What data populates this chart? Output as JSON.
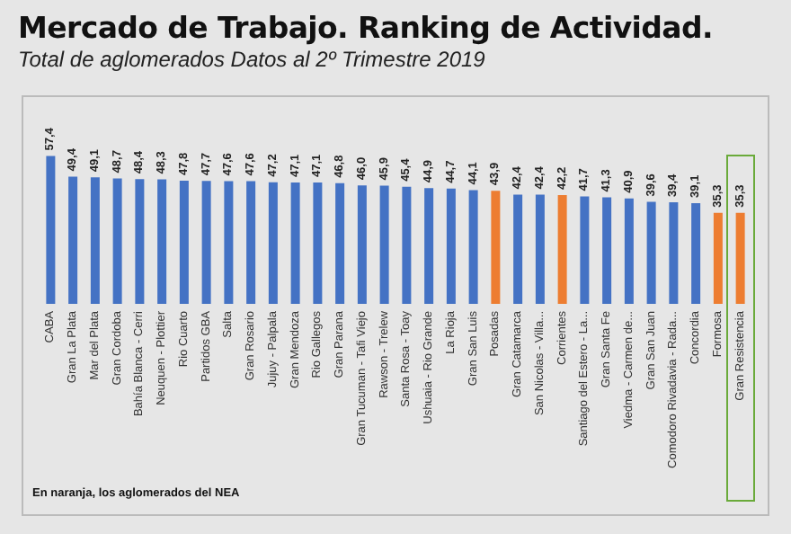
{
  "chart_data": {
    "type": "bar",
    "title": "Mercado de Trabajo. Ranking de Actividad.",
    "subtitle": "Total de aglomerados Datos al 2º Trimestre 2019",
    "categories": [
      "CABA",
      "Gran La Plata",
      "Mar del Plata",
      "Gran Cordoba",
      "Bahía Blanca - Cerri",
      "Neuquen - Plottier",
      "Rio Cuarto",
      "Partidos GBA",
      "Salta",
      "Gran Rosario",
      "Jujuy - Palpala",
      "Gran Mendoza",
      "Rio Gallegos",
      "Gran Parana",
      "Gran Tucuman - Tafi Viejo",
      "Rawson - Trelew",
      "Santa Rosa - Toay",
      "Ushuaia - Rio Grande",
      "La Rioja",
      "Gran San Luis",
      "Posadas",
      "Gran Catamarca",
      "San Nicolas - Villa...",
      "Corrientes",
      "Santiago del Estero - La...",
      "Gran Santa Fe",
      "Viedma - Carmen de...",
      "Gran San Juan",
      "Comodoro Rivadavia - Rada...",
      "Concordia",
      "Formosa",
      "Gran Resistencia"
    ],
    "values": [
      57.4,
      49.4,
      49.1,
      48.7,
      48.4,
      48.3,
      47.8,
      47.7,
      47.6,
      47.6,
      47.2,
      47.1,
      47.1,
      46.8,
      46.0,
      45.9,
      45.4,
      44.9,
      44.7,
      44.1,
      43.9,
      42.4,
      42.4,
      42.2,
      41.7,
      41.3,
      40.9,
      39.6,
      39.4,
      39.1,
      35.3,
      35.3
    ],
    "colors": [
      "#4472c4",
      "#4472c4",
      "#4472c4",
      "#4472c4",
      "#4472c4",
      "#4472c4",
      "#4472c4",
      "#4472c4",
      "#4472c4",
      "#4472c4",
      "#4472c4",
      "#4472c4",
      "#4472c4",
      "#4472c4",
      "#4472c4",
      "#4472c4",
      "#4472c4",
      "#4472c4",
      "#4472c4",
      "#4472c4",
      "#ed7d31",
      "#4472c4",
      "#4472c4",
      "#ed7d31",
      "#4472c4",
      "#4472c4",
      "#4472c4",
      "#4472c4",
      "#4472c4",
      "#4472c4",
      "#ed7d31",
      "#ed7d31"
    ],
    "value_labels": [
      "57,4",
      "49,4",
      "49,1",
      "48,7",
      "48,4",
      "48,3",
      "47,8",
      "47,7",
      "47,6",
      "47,6",
      "47,2",
      "47,1",
      "47,1",
      "46,8",
      "46,0",
      "45,9",
      "45,4",
      "44,9",
      "44,7",
      "44,1",
      "43,9",
      "42,4",
      "42,4",
      "42,2",
      "41,7",
      "41,3",
      "40,9",
      "39,6",
      "39,4",
      "39,1",
      "35,3",
      "35,3"
    ],
    "annotations": [
      "En naranja, los aglomerados del NEA"
    ]
  }
}
